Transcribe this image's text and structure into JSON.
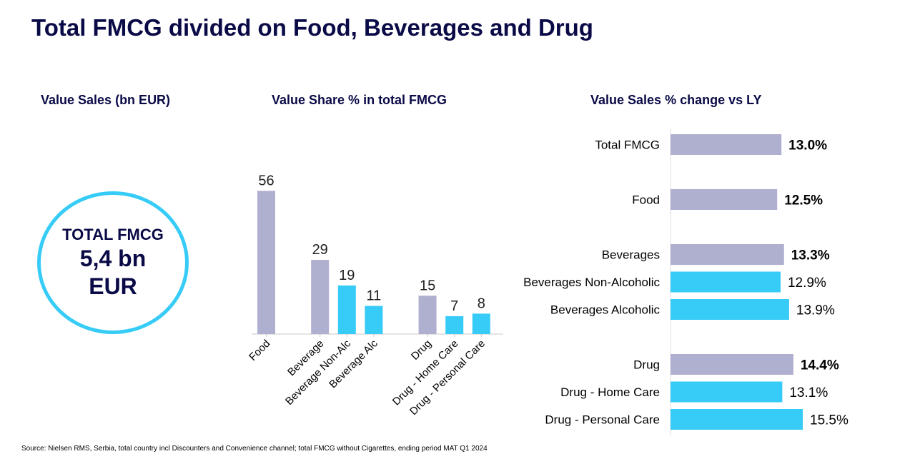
{
  "title": "Total FMCG divided on Food, Beverages and Drug",
  "colors": {
    "primary": "#afafcf",
    "secondary": "#36ccf7",
    "title": "#0a0a47"
  },
  "value_sales": {
    "heading": "Value Sales (bn EUR)",
    "circle_line1": "TOTAL FMCG",
    "circle_line2": "5,4 bn",
    "circle_line3": "EUR"
  },
  "source": "Source: Nielsen RMS, Serbia, total country incl Discounters and Convenience channel; total FMCG without Cigarettes, ending period MAT Q1 2024",
  "chart_data": [
    {
      "type": "bar",
      "title": "Value Share % in total FMCG",
      "categories": [
        "Food",
        "Beverage",
        "Beverage Non-Alc",
        "Beverage Alc",
        "Drug",
        "Drug - Home Care",
        "Drug - Personal Care"
      ],
      "values": [
        56,
        29,
        19,
        11,
        15,
        7,
        8
      ],
      "data_labels": [
        "56",
        "29",
        "19",
        "11",
        "15",
        "7",
        "8"
      ],
      "groups": [
        0,
        1,
        1,
        1,
        2,
        2,
        2
      ],
      "levels": [
        "primary",
        "primary",
        "secondary",
        "secondary",
        "primary",
        "secondary",
        "secondary"
      ],
      "ylim": [
        0,
        60
      ],
      "grid": false,
      "legend": "none"
    },
    {
      "type": "bar",
      "orientation": "horizontal",
      "title": "Value Sales % change vs LY",
      "categories": [
        "Total FMCG",
        "Food",
        "Beverages",
        "Beverages Non-Alcoholic",
        "Beverages Alcoholic",
        "Drug",
        "Drug - Home Care",
        "Drug - Personal Care"
      ],
      "values": [
        13.0,
        12.5,
        13.3,
        12.9,
        13.9,
        14.4,
        13.1,
        15.5
      ],
      "data_labels": [
        "13.0%",
        "12.5%",
        "13.3%",
        "12.9%",
        "13.9%",
        "14.4%",
        "13.1%",
        "15.5%"
      ],
      "groups": [
        0,
        1,
        2,
        2,
        2,
        3,
        3,
        3
      ],
      "levels": [
        "primary",
        "primary",
        "primary",
        "secondary",
        "secondary",
        "primary",
        "secondary",
        "secondary"
      ],
      "xlim": [
        0,
        15.5
      ],
      "grid": false,
      "legend": "none"
    }
  ]
}
